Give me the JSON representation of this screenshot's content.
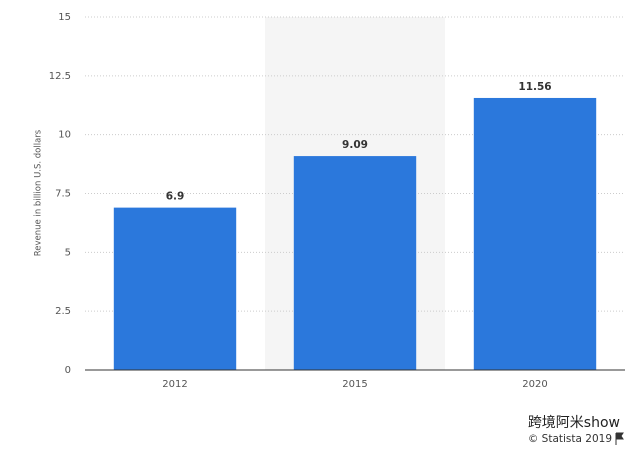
{
  "chart_data": {
    "type": "bar",
    "y_label": "Revenue in billion U.S. dollars",
    "categories": [
      "2012",
      "2015",
      "2020"
    ],
    "values": [
      6.9,
      9.09,
      11.56
    ],
    "color": "#2b78dc",
    "ylim": [
      0,
      15
    ],
    "yticks": [
      0,
      2.5,
      5,
      7.5,
      10,
      12.5,
      15
    ],
    "grid": true,
    "highlight": "2015",
    "watermark": "跨境阿米show",
    "source": "© Statista 2019"
  }
}
